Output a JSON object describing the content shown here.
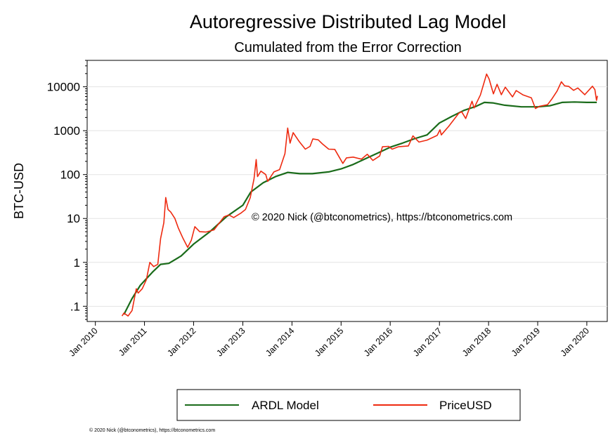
{
  "chart_data": {
    "type": "line",
    "title": "Autoregressive Distributed Lag Model",
    "subtitle": "Cumulated from the Error Correction",
    "ylabel": "BTC-USD",
    "xlabel": "",
    "y_scale": "log",
    "ylim": [
      0.045,
      40000
    ],
    "xlim": [
      "2009-11-01",
      "2020-06-01"
    ],
    "y_ticks": [
      {
        "value": 0.1,
        "label": ".1"
      },
      {
        "value": 1,
        "label": "1"
      },
      {
        "value": 10,
        "label": "10"
      },
      {
        "value": 100,
        "label": "100"
      },
      {
        "value": 1000,
        "label": "1000"
      },
      {
        "value": 10000,
        "label": "10000"
      }
    ],
    "x_ticks": [
      {
        "value": "2010-01-01",
        "label": "Jan 2010"
      },
      {
        "value": "2011-01-01",
        "label": "Jan 2011"
      },
      {
        "value": "2012-01-01",
        "label": "Jan 2012"
      },
      {
        "value": "2013-01-01",
        "label": "Jan 2013"
      },
      {
        "value": "2014-01-01",
        "label": "Jan 2014"
      },
      {
        "value": "2015-01-01",
        "label": "Jan 2015"
      },
      {
        "value": "2016-01-01",
        "label": "Jan 2016"
      },
      {
        "value": "2017-01-01",
        "label": "Jan 2017"
      },
      {
        "value": "2018-01-01",
        "label": "Jan 2018"
      },
      {
        "value": "2019-01-01",
        "label": "Jan 2019"
      },
      {
        "value": "2020-01-01",
        "label": "Jan 2020"
      }
    ],
    "grid": true,
    "legend_position": "bottom",
    "annotation": "© 2020 Nick (@btconometrics), https://btconometrics.com",
    "series": [
      {
        "name": "ARDL Model",
        "color": "#1a6b1a",
        "points": [
          [
            "2010-08-01",
            0.065
          ],
          [
            "2010-10-01",
            0.15
          ],
          [
            "2010-12-01",
            0.3
          ],
          [
            "2011-03-01",
            0.6
          ],
          [
            "2011-05-01",
            0.9
          ],
          [
            "2011-07-01",
            0.95
          ],
          [
            "2011-10-01",
            1.4
          ],
          [
            "2012-01-01",
            2.6
          ],
          [
            "2012-05-01",
            5
          ],
          [
            "2012-09-01",
            11
          ],
          [
            "2013-01-01",
            20
          ],
          [
            "2013-03-01",
            40
          ],
          [
            "2013-06-01",
            65
          ],
          [
            "2013-09-01",
            90
          ],
          [
            "2013-12-01",
            112
          ],
          [
            "2014-03-01",
            105
          ],
          [
            "2014-06-01",
            105
          ],
          [
            "2014-10-01",
            115
          ],
          [
            "2015-01-01",
            135
          ],
          [
            "2015-04-01",
            170
          ],
          [
            "2015-07-01",
            230
          ],
          [
            "2015-10-01",
            310
          ],
          [
            "2016-01-01",
            420
          ],
          [
            "2016-04-01",
            520
          ],
          [
            "2016-07-01",
            660
          ],
          [
            "2016-10-01",
            800
          ],
          [
            "2017-01-01",
            1500
          ],
          [
            "2017-04-01",
            2100
          ],
          [
            "2017-07-01",
            2900
          ],
          [
            "2017-10-01",
            3600
          ],
          [
            "2017-12-01",
            4400
          ],
          [
            "2018-02-01",
            4300
          ],
          [
            "2018-05-01",
            3800
          ],
          [
            "2018-09-01",
            3500
          ],
          [
            "2019-01-01",
            3500
          ],
          [
            "2019-04-01",
            3700
          ],
          [
            "2019-07-01",
            4400
          ],
          [
            "2019-10-01",
            4500
          ],
          [
            "2020-01-01",
            4400
          ],
          [
            "2020-03-15",
            4400
          ]
        ]
      },
      {
        "name": "PriceUSD",
        "color": "#ee2a10",
        "points": [
          [
            "2010-07-18",
            0.06
          ],
          [
            "2010-08-01",
            0.07
          ],
          [
            "2010-09-01",
            0.06
          ],
          [
            "2010-10-01",
            0.08
          ],
          [
            "2010-11-01",
            0.25
          ],
          [
            "2010-11-15",
            0.2
          ],
          [
            "2010-12-15",
            0.25
          ],
          [
            "2011-01-15",
            0.4
          ],
          [
            "2011-02-10",
            1.0
          ],
          [
            "2011-03-10",
            0.8
          ],
          [
            "2011-04-10",
            0.9
          ],
          [
            "2011-05-01",
            3.5
          ],
          [
            "2011-05-25",
            8
          ],
          [
            "2011-06-08",
            30
          ],
          [
            "2011-06-25",
            16
          ],
          [
            "2011-07-15",
            14
          ],
          [
            "2011-08-15",
            10
          ],
          [
            "2011-09-10",
            6
          ],
          [
            "2011-10-15",
            3.5
          ],
          [
            "2011-11-18",
            2.2
          ],
          [
            "2011-12-15",
            3.2
          ],
          [
            "2012-01-10",
            6.5
          ],
          [
            "2012-02-15",
            5
          ],
          [
            "2012-04-01",
            4.9
          ],
          [
            "2012-06-01",
            5.5
          ],
          [
            "2012-08-15",
            11
          ],
          [
            "2012-09-20",
            12
          ],
          [
            "2012-10-25",
            10.5
          ],
          [
            "2012-12-20",
            13.4
          ],
          [
            "2013-01-20",
            16
          ],
          [
            "2013-02-25",
            30
          ],
          [
            "2013-03-25",
            80
          ],
          [
            "2013-04-10",
            220
          ],
          [
            "2013-04-20",
            90
          ],
          [
            "2013-05-15",
            120
          ],
          [
            "2013-06-20",
            100
          ],
          [
            "2013-07-05",
            70
          ],
          [
            "2013-08-20",
            115
          ],
          [
            "2013-10-01",
            130
          ],
          [
            "2013-11-10",
            300
          ],
          [
            "2013-11-30",
            1150
          ],
          [
            "2013-12-18",
            520
          ],
          [
            "2014-01-10",
            900
          ],
          [
            "2014-02-25",
            560
          ],
          [
            "2014-04-10",
            380
          ],
          [
            "2014-05-15",
            440
          ],
          [
            "2014-06-05",
            650
          ],
          [
            "2014-07-15",
            620
          ],
          [
            "2014-08-15",
            500
          ],
          [
            "2014-10-01",
            380
          ],
          [
            "2014-11-15",
            375
          ],
          [
            "2015-01-14",
            180
          ],
          [
            "2015-02-10",
            240
          ],
          [
            "2015-04-01",
            250
          ],
          [
            "2015-06-01",
            225
          ],
          [
            "2015-07-15",
            290
          ],
          [
            "2015-08-25",
            210
          ],
          [
            "2015-10-15",
            265
          ],
          [
            "2015-11-04",
            430
          ],
          [
            "2015-12-20",
            440
          ],
          [
            "2016-01-15",
            380
          ],
          [
            "2016-03-01",
            430
          ],
          [
            "2016-05-15",
            450
          ],
          [
            "2016-06-18",
            760
          ],
          [
            "2016-08-02",
            550
          ],
          [
            "2016-10-01",
            610
          ],
          [
            "2016-12-15",
            780
          ],
          [
            "2017-01-05",
            1050
          ],
          [
            "2017-01-15",
            800
          ],
          [
            "2017-03-10",
            1250
          ],
          [
            "2017-05-25",
            2500
          ],
          [
            "2017-06-15",
            2700
          ],
          [
            "2017-07-15",
            1900
          ],
          [
            "2017-08-31",
            4700
          ],
          [
            "2017-09-15",
            3300
          ],
          [
            "2017-11-01",
            6500
          ],
          [
            "2017-12-17",
            19500
          ],
          [
            "2018-01-05",
            15000
          ],
          [
            "2018-02-06",
            6900
          ],
          [
            "2018-03-05",
            11400
          ],
          [
            "2018-04-06",
            6600
          ],
          [
            "2018-05-05",
            9800
          ],
          [
            "2018-06-28",
            5900
          ],
          [
            "2018-07-25",
            8200
          ],
          [
            "2018-09-15",
            6500
          ],
          [
            "2018-11-15",
            5600
          ],
          [
            "2018-12-15",
            3200
          ],
          [
            "2019-01-15",
            3600
          ],
          [
            "2019-03-15",
            3900
          ],
          [
            "2019-04-15",
            5200
          ],
          [
            "2019-05-25",
            8000
          ],
          [
            "2019-06-26",
            13000
          ],
          [
            "2019-07-20",
            10500
          ],
          [
            "2019-08-20",
            10200
          ],
          [
            "2019-09-25",
            8300
          ],
          [
            "2019-10-26",
            9400
          ],
          [
            "2019-12-17",
            6600
          ],
          [
            "2020-02-12",
            10300
          ],
          [
            "2020-03-01",
            8600
          ],
          [
            "2020-03-13",
            4900
          ],
          [
            "2020-03-20",
            6200
          ]
        ]
      }
    ]
  },
  "footer": {
    "credit": "© 2020 Nick (@btconometrics), https://btconometrics.com"
  }
}
